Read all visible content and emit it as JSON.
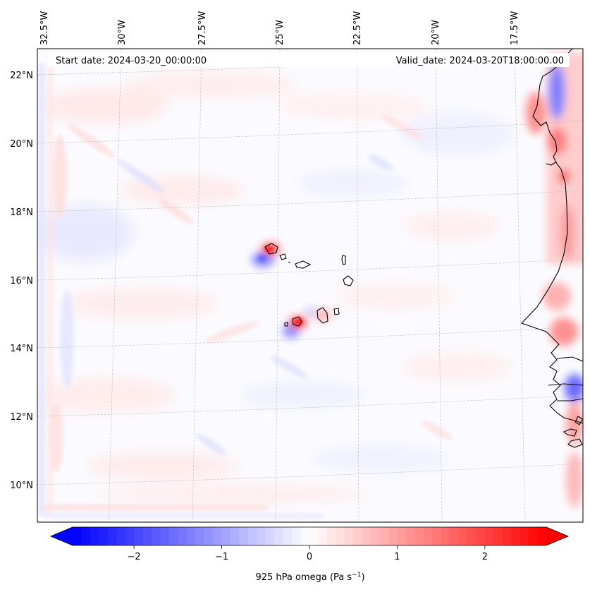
{
  "header": {
    "start_date": "Start date: 2024-03-20_00:00:00",
    "valid_date": "Valid_date: 2024-03-20T18:00:00.00"
  },
  "map": {
    "projection": "lambert-conformal",
    "lon_labels": [
      "32.5°W",
      "30°W",
      "27.5°W",
      "25°W",
      "22.5°W",
      "20°W",
      "17.5°W"
    ],
    "lat_labels": [
      "22°N",
      "20°N",
      "18°N",
      "16°N",
      "14°N",
      "12°N",
      "10°N"
    ],
    "gridlines": true,
    "features": [
      "Cape Verde islands",
      "West African coastline"
    ],
    "colors": {
      "negative": "#0000ff",
      "neutral": "#ffffff",
      "positive": "#ff0000",
      "coastline": "#000000",
      "gridline": "#bbbbbb"
    }
  },
  "colorbar": {
    "label_prefix": "925 hPa omega (Pa s",
    "label_exp": "−1",
    "label_suffix": ")",
    "range": [
      -2.7,
      2.7
    ],
    "ticks": [
      {
        "value": -2,
        "label": "−2"
      },
      {
        "value": -1,
        "label": "−1"
      },
      {
        "value": 0,
        "label": "0"
      },
      {
        "value": 1,
        "label": "1"
      },
      {
        "value": 2,
        "label": "2"
      }
    ],
    "extend": "both",
    "colormap": "bwr"
  }
}
